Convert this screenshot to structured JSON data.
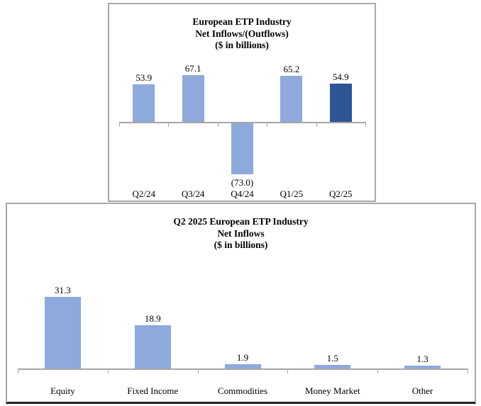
{
  "colors": {
    "bar_light": "#8EA9DB",
    "bar_dark": "#2E5594",
    "axis": "#A6A6A6",
    "panel_border": "#A8A8A8",
    "panel_border_bottom_dark": "#1F1F1F",
    "text": "#000000",
    "background": "#FFFFFF"
  },
  "chart_data": [
    {
      "type": "bar",
      "title": "European ETP Industry",
      "subtitle": "Net Inflows/(Outflows)",
      "units_label": "($ in billions)",
      "categories": [
        "Q2/24",
        "Q3/24",
        "Q4/24",
        "Q1/25",
        "Q2/25"
      ],
      "values": [
        53.9,
        67.1,
        -73.0,
        65.2,
        54.9
      ],
      "value_labels": [
        "53.9",
        "67.1",
        "(73.0)",
        "65.2",
        "54.9"
      ],
      "bar_colors": [
        "#8EA9DB",
        "#8EA9DB",
        "#8EA9DB",
        "#8EA9DB",
        "#2E5594"
      ],
      "ylim": [
        -85,
        75
      ],
      "grid": false,
      "legend": "none",
      "xlabel": "",
      "ylabel": ""
    },
    {
      "type": "bar",
      "title": "Q2 2025 European ETP Industry",
      "subtitle": "Net Inflows",
      "units_label": "($ in billions)",
      "categories": [
        "Equity",
        "Fixed Income",
        "Commodities",
        "Money Market",
        "Other"
      ],
      "values": [
        31.3,
        18.9,
        1.9,
        1.5,
        1.3
      ],
      "value_labels": [
        "31.3",
        "18.9",
        "1.9",
        "1.5",
        "1.3"
      ],
      "bar_colors": [
        "#8EA9DB",
        "#8EA9DB",
        "#8EA9DB",
        "#8EA9DB",
        "#8EA9DB"
      ],
      "ylim": [
        0,
        38
      ],
      "grid": false,
      "legend": "none",
      "xlabel": "",
      "ylabel": ""
    }
  ]
}
